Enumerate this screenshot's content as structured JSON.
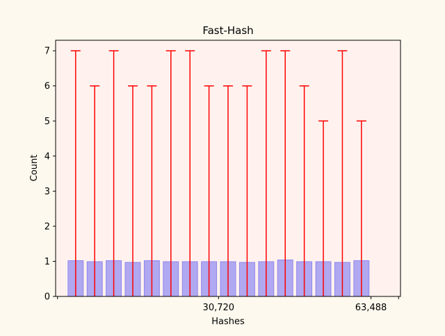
{
  "chart_data": {
    "type": "bar",
    "title": "Fast-Hash",
    "xlabel": "Hashes",
    "ylabel": "Count",
    "ylim": [
      0,
      7.3
    ],
    "x_ticks": [
      {
        "label": "",
        "pos": -0.95
      },
      {
        "label": "30,720",
        "pos": 7.5
      },
      {
        "label": "63,488",
        "pos": 15.5
      },
      {
        "label": "",
        "pos": 16.95
      }
    ],
    "xlim": [
      -1.05,
      17.05
    ],
    "y_ticks": [
      0,
      1,
      2,
      3,
      4,
      5,
      6,
      7
    ],
    "values": [
      1.02,
      0.99,
      1.02,
      0.97,
      1.02,
      0.99,
      0.99,
      0.99,
      0.99,
      0.97,
      0.99,
      1.04,
      0.99,
      0.99,
      0.97,
      1.02
    ],
    "error_upper": [
      7,
      6,
      7,
      6,
      6,
      7,
      7,
      6,
      6,
      6,
      7,
      7,
      6,
      5,
      7,
      5
    ],
    "colors": {
      "plot_background": "#fff2ee",
      "page_background": "#fdf9ee",
      "bar_fill": "#b0a8f0",
      "bar_edge": "#8f86ee",
      "error_bar": "#ff0000"
    },
    "grid": false,
    "legend": "none"
  }
}
